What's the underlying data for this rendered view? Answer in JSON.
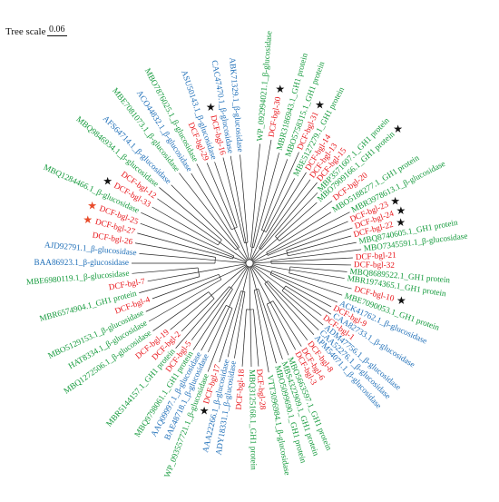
{
  "scale": {
    "label": "Tree scale",
    "value": "0.06"
  },
  "colors": {
    "dcf": "#e8161b",
    "green": "#149a3c",
    "blue": "#1f6fb8",
    "branch": "#222222",
    "star_red": "#e84b2a",
    "star_black": "#111111"
  },
  "leaves": [
    {
      "label": "WP_092994021.1_β-glucosidase",
      "group": "green",
      "angle": -85,
      "r": 258
    },
    {
      "label": "DCF-bgl-30",
      "group": "dcf",
      "angle": -80,
      "r": 200,
      "star": "black"
    },
    {
      "label": "MBR3186943.1_GH1 protein",
      "group": "green",
      "angle": -75,
      "r": 252
    },
    {
      "label": "MBO5758315.1_GH1 protein",
      "group": "green",
      "angle": -70,
      "r": 248
    },
    {
      "label": "DCF-bgl-31",
      "group": "dcf",
      "angle": -66,
      "r": 196,
      "star": "black"
    },
    {
      "label": "MBE5127279.1_GH1 protein",
      "group": "green",
      "angle": -62,
      "r": 232
    },
    {
      "label": "DCF-bgl-14",
      "group": "dcf",
      "angle": -58,
      "r": 180
    },
    {
      "label": "DCF-bgl-13",
      "group": "dcf",
      "angle": -54,
      "r": 176
    },
    {
      "label": "DCF-bgl-15",
      "group": "dcf",
      "angle": -50,
      "r": 178
    },
    {
      "label": "MBP3571607.1_GH1 protein",
      "group": "green",
      "angle": -46,
      "r": 234
    },
    {
      "label": "MBO7909166.1_GH1 protein",
      "group": "green",
      "angle": -42,
      "r": 226,
      "star": "black"
    },
    {
      "label": "DCF-bgl-20",
      "group": "dcf",
      "angle": -37,
      "r": 176
    },
    {
      "label": "MBO5188277.1_GH1 protein",
      "group": "green",
      "angle": -32,
      "r": 232
    },
    {
      "label": "MBR3978613.1_β-glucosidase",
      "group": "green",
      "angle": -27,
      "r": 250
    },
    {
      "label": "DCF-bgl-23",
      "group": "dcf",
      "angle": -23,
      "r": 180,
      "star": "black"
    },
    {
      "label": "DCF-bgl-24",
      "group": "dcf",
      "angle": -19,
      "r": 182,
      "star": "black"
    },
    {
      "label": "DCF-bgl-22",
      "group": "dcf",
      "angle": -15,
      "r": 178,
      "star": "black"
    },
    {
      "label": "MBQ8740605.1_GH1 protein",
      "group": "green",
      "angle": -11,
      "r": 246
    },
    {
      "label": "MBO7345591.1_β-glucosidase",
      "group": "green",
      "angle": -7,
      "r": 250
    },
    {
      "label": "DCF-bgl-21",
      "group": "dcf",
      "angle": -3,
      "r": 176
    },
    {
      "label": "DCF-bgl-32",
      "group": "dcf",
      "angle": 1,
      "r": 174
    },
    {
      "label": "MBQ8689522.1_GH1 protein",
      "group": "green",
      "angle": 5,
      "r": 234
    },
    {
      "label": "MBR1974365.1_GH1 protein",
      "group": "green",
      "angle": 9,
      "r": 232
    },
    {
      "label": "DCF-bgl-10",
      "group": "dcf",
      "angle": 14,
      "r": 178,
      "star": "black"
    },
    {
      "label": "MBE7090053.1_GH1 protein",
      "group": "green",
      "angle": 19,
      "r": 234
    },
    {
      "label": "ACK41762.1_β-glucosidase",
      "group": "blue",
      "angle": 24,
      "r": 232
    },
    {
      "label": "DCF-bgl-9",
      "group": "dcf",
      "angle": 28,
      "r": 164
    },
    {
      "label": "CAA82733.1_β-glucosidase",
      "group": "blue",
      "angle": 32,
      "r": 232
    },
    {
      "label": "DCF-bgl-1",
      "group": "dcf",
      "angle": 36,
      "r": 160
    },
    {
      "label": "ADM47756.1_β-glucosidase",
      "group": "blue",
      "angle": 40,
      "r": 232
    },
    {
      "label": "CAA52276.1_β-glucosidase",
      "group": "blue",
      "angle": 44,
      "r": 232
    },
    {
      "label": "APM54071.1_β-glucosidase",
      "group": "blue",
      "angle": 48,
      "r": 232
    },
    {
      "label": "DCF-bgl-8",
      "group": "dcf",
      "angle": 53,
      "r": 168
    },
    {
      "label": "DCF-bgl-6",
      "group": "dcf",
      "angle": 58,
      "r": 170
    },
    {
      "label": "DCF-bgl-3",
      "group": "dcf",
      "angle": 62,
      "r": 170
    },
    {
      "label": "MBO5663597.1_GH1 protein",
      "group": "green",
      "angle": 67,
      "r": 236
    },
    {
      "label": "MBS4322909.1_GH1 protein",
      "group": "green",
      "angle": 71,
      "r": 238
    },
    {
      "label": "MBO5099690.1_GH1 protein",
      "group": "green",
      "angle": 75,
      "r": 240
    },
    {
      "label": "VTT3096984.1_β-glucosidase",
      "group": "green",
      "angle": 80,
      "r": 248
    },
    {
      "label": "DCF-bgl-28",
      "group": "dcf",
      "angle": 85,
      "r": 176
    },
    {
      "label": "MBQ3125168.1_GH1 protein",
      "group": "green",
      "angle": 89,
      "r": 240
    },
    {
      "label": "DCF-bgl-18",
      "group": "dcf",
      "angle": 94,
      "r": 176
    },
    {
      "label": "ADY18331.1_β-glucosidase",
      "group": "blue",
      "angle": 99,
      "r": 232
    },
    {
      "label": "AAA22266.1_β-glucosidase",
      "group": "blue",
      "angle": 103,
      "r": 232
    },
    {
      "label": "DCF-bgl-17",
      "group": "dcf",
      "angle": 107,
      "r": 176,
      "star": "black"
    },
    {
      "label": "WP_093557721.1_β-glucosidase",
      "group": "green",
      "angle": 111,
      "r": 254
    },
    {
      "label": "BAE48718.1_β-glucosidase",
      "group": "blue",
      "angle": 115,
      "r": 234
    },
    {
      "label": "AAQ09997.1_β-glucosidase",
      "group": "blue",
      "angle": 119,
      "r": 236
    },
    {
      "label": "MBQ9798061.1_GH1 protein",
      "group": "green",
      "angle": 123,
      "r": 240
    },
    {
      "label": "DCF-bgl-5",
      "group": "dcf",
      "angle": 127,
      "r": 168
    },
    {
      "label": "MBR5144157.1_GH1 protein",
      "group": "green",
      "angle": 131,
      "r": 250
    },
    {
      "label": "DCF-bgl-2",
      "group": "dcf",
      "angle": 135,
      "r": 168
    },
    {
      "label": "DCF-bgl-19",
      "group": "dcf",
      "angle": 140,
      "r": 176
    },
    {
      "label": "MBQ1272506.1_β-glucosidase",
      "group": "green",
      "angle": 145,
      "r": 256
    },
    {
      "label": "HAT8334.1_β-glucosidase",
      "group": "green",
      "angle": 150,
      "r": 254
    },
    {
      "label": "MBO5129153.1_β-glucosidase",
      "group": "green",
      "angle": 155,
      "r": 252
    },
    {
      "label": "DCF-bgl-4",
      "group": "dcf",
      "angle": 160,
      "r": 176
    },
    {
      "label": "MBR6574904.1_GH1 protein",
      "group": "green",
      "angle": 165,
      "r": 252
    },
    {
      "label": "DCF-bgl-7",
      "group": "dcf",
      "angle": 170,
      "r": 176
    },
    {
      "label": "MBE6980119.1_β-glucosidase",
      "group": "green",
      "angle": 175,
      "r": 256
    },
    {
      "label": "BAA86923.1_β-glucosidase",
      "group": "blue",
      "angle": 180,
      "r": 256
    },
    {
      "label": "AJD92791.1_β-glucosidase",
      "group": "blue",
      "angle": 185,
      "r": 248
    },
    {
      "label": "DCF-bgl-26",
      "group": "dcf",
      "angle": 190,
      "r": 190
    },
    {
      "label": "DCF-bgl-27",
      "group": "dcf",
      "angle": 195,
      "r": 190,
      "star": "red"
    },
    {
      "label": "DCF-bgl-25",
      "group": "dcf",
      "angle": 200,
      "r": 190,
      "star": "red"
    },
    {
      "label": "MBQ1284466.1_β-glucosidase",
      "group": "green",
      "angle": 205,
      "r": 258
    },
    {
      "label": "DCF-bgl-33",
      "group": "dcf",
      "angle": 210,
      "r": 186,
      "star": "black"
    },
    {
      "label": "DCF-bgl-12",
      "group": "dcf",
      "angle": 215,
      "r": 186
    },
    {
      "label": "MBQ9846934.1_β-glucosidase",
      "group": "green",
      "angle": 220,
      "r": 256
    },
    {
      "label": "AFS64714.1_β-glucosidase",
      "group": "blue",
      "angle": 225,
      "r": 248
    },
    {
      "label": "MBE7081073.1_β-glucosidase",
      "group": "green",
      "angle": 232,
      "r": 252
    },
    {
      "label": "ACO44832.1_β-glucosidase",
      "group": "blue",
      "angle": 237,
      "r": 244
    },
    {
      "label": "MBO7876025.1_β-glucosidase",
      "group": "green",
      "angle": 242,
      "r": 250
    },
    {
      "label": "DCF-bgl-29",
      "group": "dcf",
      "angle": 247,
      "r": 182
    },
    {
      "label": "ASU50143.1_β-glucosidase",
      "group": "blue",
      "angle": 251,
      "r": 244
    },
    {
      "label": "DCF-bgl-16",
      "group": "dcf",
      "angle": 256,
      "r": 182,
      "star": "black"
    },
    {
      "label": "CAC47470.1_β-glucosidase",
      "group": "blue",
      "angle": 260,
      "r": 246
    },
    {
      "label": "ABK71329.1_β-glucosidase",
      "group": "blue",
      "angle": 265,
      "r": 246
    }
  ]
}
